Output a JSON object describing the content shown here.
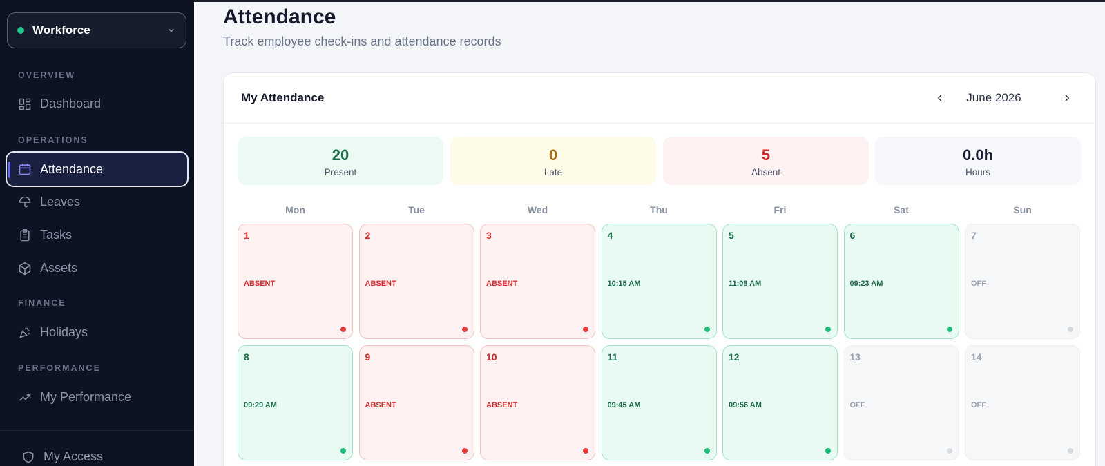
{
  "sidebar": {
    "workspace": "Workforce",
    "sections": {
      "overview": "OVERVIEW",
      "operations": "OPERATIONS",
      "finance": "FINANCE",
      "performance": "PERFORMANCE"
    },
    "items": {
      "dashboard": "Dashboard",
      "attendance": "Attendance",
      "leaves": "Leaves",
      "tasks": "Tasks",
      "assets": "Assets",
      "holidays": "Holidays",
      "my_performance": "My Performance",
      "my_access": "My Access"
    },
    "icons": {
      "dashboard": "grid-icon",
      "attendance": "calendar-icon",
      "leaves": "umbrella-icon",
      "tasks": "clipboard-icon",
      "assets": "box-icon",
      "holidays": "party-icon",
      "my_performance": "trending-up-icon",
      "my_access": "shield-icon"
    },
    "active": "attendance"
  },
  "page": {
    "title": "Attendance",
    "subtitle": "Track employee check-ins and attendance records"
  },
  "card": {
    "title": "My Attendance",
    "month": "June 2026",
    "stats": [
      {
        "value": "20",
        "label": "Present",
        "bg": "#ebfaf3",
        "color": "#1b6b4b"
      },
      {
        "value": "0",
        "label": "Late",
        "bg": "#fefbe8",
        "color": "#a1670c"
      },
      {
        "value": "5",
        "label": "Absent",
        "bg": "#fef1f1",
        "color": "#d12b2b"
      },
      {
        "value": "0.0h",
        "label": "Hours",
        "bg": "#f5f7fa",
        "color": "#1b2233"
      }
    ],
    "weekdays": [
      "Mon",
      "Tue",
      "Wed",
      "Thu",
      "Fri",
      "Sat",
      "Sun"
    ],
    "days": [
      {
        "num": "1",
        "status": "absent",
        "text": "ABSENT"
      },
      {
        "num": "2",
        "status": "absent",
        "text": "ABSENT"
      },
      {
        "num": "3",
        "status": "absent",
        "text": "ABSENT"
      },
      {
        "num": "4",
        "status": "present",
        "text": "10:15 AM"
      },
      {
        "num": "5",
        "status": "present",
        "text": "11:08 AM"
      },
      {
        "num": "6",
        "status": "present",
        "text": "09:23 AM"
      },
      {
        "num": "7",
        "status": "off",
        "text": "OFF"
      },
      {
        "num": "8",
        "status": "present",
        "text": "09:29 AM"
      },
      {
        "num": "9",
        "status": "absent",
        "text": "ABSENT"
      },
      {
        "num": "10",
        "status": "absent",
        "text": "ABSENT"
      },
      {
        "num": "11",
        "status": "present",
        "text": "09:45 AM"
      },
      {
        "num": "12",
        "status": "present",
        "text": "09:56 AM"
      },
      {
        "num": "13",
        "status": "off",
        "text": "OFF"
      },
      {
        "num": "14",
        "status": "off",
        "text": "OFF"
      }
    ]
  },
  "colors": {
    "accent": "#6d6cf5",
    "online": "#22c58b"
  }
}
